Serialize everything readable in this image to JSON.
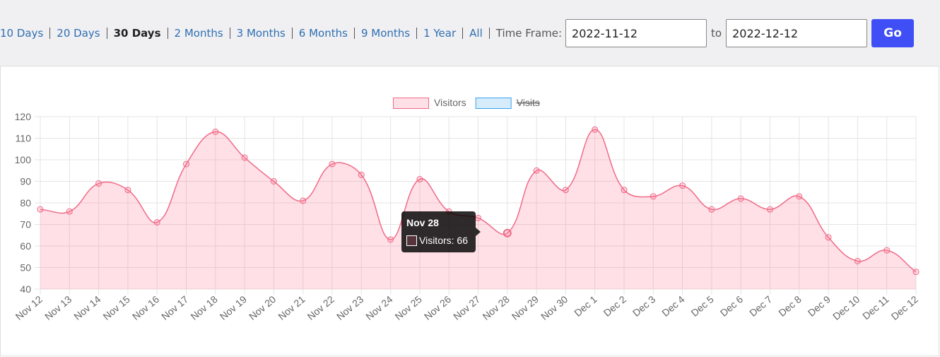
{
  "toolbar": {
    "ranges": [
      "10 Days",
      "20 Days",
      "30 Days",
      "2 Months",
      "3 Months",
      "6 Months",
      "9 Months",
      "1 Year",
      "All"
    ],
    "active_range": 2,
    "time_frame_label": "Time Frame:",
    "from": "2022-11-12",
    "to_label": "to",
    "to": "2022-12-12",
    "button": "Go"
  },
  "chart_data": {
    "type": "line",
    "categories": [
      "Nov 12",
      "Nov 13",
      "Nov 14",
      "Nov 15",
      "Nov 16",
      "Nov 17",
      "Nov 18",
      "Nov 19",
      "Nov 20",
      "Nov 21",
      "Nov 22",
      "Nov 23",
      "Nov 24",
      "Nov 25",
      "Nov 26",
      "Nov 27",
      "Nov 28",
      "Nov 29",
      "Nov 30",
      "Dec 1",
      "Dec 2",
      "Dec 3",
      "Dec 4",
      "Dec 5",
      "Dec 6",
      "Dec 7",
      "Dec 8",
      "Dec 9",
      "Dec 10",
      "Dec 11",
      "Dec 12"
    ],
    "series": [
      {
        "name": "Visitors",
        "color": "#f06a88",
        "fill": "rgba(255,99,132,0.2)",
        "values": [
          77,
          76,
          89,
          86,
          71,
          98,
          113,
          101,
          90,
          81,
          98,
          93,
          63,
          91,
          76,
          73,
          66,
          95,
          86,
          114,
          86,
          83,
          88,
          77,
          82,
          77,
          83,
          64,
          53,
          58,
          48
        ]
      },
      {
        "name": "Visits",
        "color": "#36a2eb",
        "fill": "rgba(54,162,235,0.2)",
        "hidden": true
      }
    ],
    "ylim": [
      40,
      120
    ],
    "yticks": [
      40,
      50,
      60,
      70,
      80,
      90,
      100,
      110,
      120
    ],
    "grid": true,
    "legend": "top"
  },
  "tooltip": {
    "index": 16,
    "title": "Nov 28",
    "label": "Visitors: 66"
  }
}
